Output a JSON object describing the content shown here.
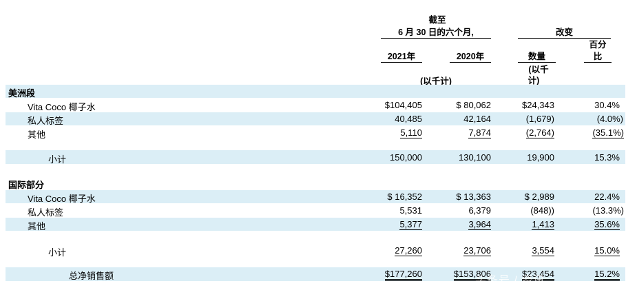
{
  "header": {
    "period_line1": "截至",
    "period_line2": "6 月 30 日的六个月,",
    "change_label": "改变",
    "col_2021": "2021年",
    "col_2020": "2020年",
    "col_amount": "数量",
    "col_percent_line1": "百分",
    "col_percent_line2": "比",
    "unit_thousands": "(以千计)",
    "unit_thousands_amount_line1": "(以千",
    "unit_thousands_amount_line2": "计)"
  },
  "sections": [
    {
      "title": "美洲段",
      "rows": [
        {
          "label": "Vita Coco 椰子水",
          "v2021": "$104,405",
          "v2020": "$  80,062",
          "amount": "$24,343",
          "pct": "30.4%"
        },
        {
          "label": "私人标签",
          "v2021": "40,485",
          "v2020": "42,164",
          "amount": "(1,679)",
          "pct": "(4.0%)"
        },
        {
          "label": "其他",
          "v2021": "5,110",
          "v2020": "7,874",
          "amount": "(2,764)",
          "pct": "(35.1%)"
        }
      ],
      "subtotal": {
        "label": "小计",
        "v2021": "150,000",
        "v2020": "130,100",
        "amount": "19,900",
        "pct": "15.3%"
      }
    },
    {
      "title": "国际部分",
      "rows": [
        {
          "label": "Vita Coco 椰子水",
          "v2021": "$  16,352",
          "v2020": "$  13,363",
          "amount": "$  2,989",
          "pct": "22.4%"
        },
        {
          "label": "私人标签",
          "v2021": "5,531",
          "v2020": "6,379",
          "amount": "(848))",
          "pct": "(13.3%)"
        },
        {
          "label": "其他",
          "v2021": "5,377",
          "v2020": "3,964",
          "amount": "1,413",
          "pct": "35.6%"
        }
      ],
      "subtotal": {
        "label": "小计",
        "v2021": "27,260",
        "v2020": "23,706",
        "amount": "3,554",
        "pct": "15.0%"
      }
    }
  ],
  "total": {
    "label": "总净销售额",
    "v2021": "$177,260",
    "v2020": "$153,806",
    "amount": "$23,454",
    "pct": "15.2%"
  },
  "watermark": "头条号 / 资讯"
}
